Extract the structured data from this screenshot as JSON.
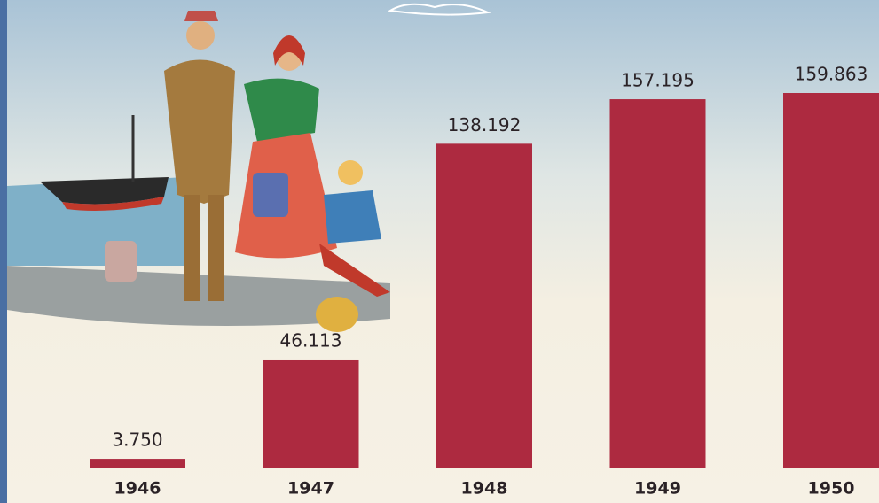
{
  "chart_data": {
    "type": "bar",
    "categories": [
      "1946",
      "1947",
      "1948",
      "1949",
      "1950"
    ],
    "values": [
      3750,
      46113,
      138192,
      157195,
      159863
    ],
    "value_labels": [
      "3.750",
      "46.113",
      "138.192",
      "157.195",
      "159.863"
    ],
    "color": "#ad2a40"
  }
}
